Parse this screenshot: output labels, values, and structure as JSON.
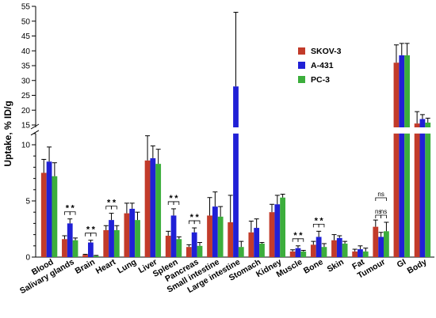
{
  "chart_data": {
    "type": "bar",
    "ylabel": "Uptake, % ID/g",
    "categories": [
      "Blood",
      "Salivary glands",
      "Brain",
      "Heart",
      "Lung",
      "Liver",
      "Spleen",
      "Pancreas",
      "Small intestine",
      "Large intestine",
      "Stomach",
      "Kidney",
      "Muscle",
      "Bone",
      "Skin",
      "Fat",
      "Tumour",
      "GI",
      "Body"
    ],
    "series": [
      {
        "name": "SKOV-3",
        "color": "#c23b2a",
        "values": [
          7.5,
          1.6,
          0.2,
          2.4,
          3.9,
          8.6,
          1.9,
          0.9,
          3.7,
          3.1,
          2.2,
          4.0,
          0.5,
          1.1,
          1.5,
          0.5,
          2.7,
          36,
          15.5
        ],
        "errors": [
          1.2,
          0.3,
          0.05,
          0.4,
          0.9,
          2.2,
          0.4,
          0.2,
          1.6,
          2.4,
          1.0,
          0.7,
          0.15,
          0.3,
          0.5,
          0.2,
          0.6,
          6,
          4
        ]
      },
      {
        "name": "A-431",
        "color": "#2020d6",
        "values": [
          8.5,
          3.0,
          1.3,
          3.3,
          4.3,
          8.8,
          3.7,
          2.2,
          4.5,
          28,
          2.6,
          4.7,
          0.8,
          1.8,
          1.7,
          0.7,
          1.8,
          38.5,
          17
        ],
        "errors": [
          1.3,
          0.4,
          0.2,
          0.6,
          0.5,
          1.1,
          0.6,
          0.4,
          1.3,
          25,
          0.8,
          0.8,
          0.2,
          0.5,
          0.2,
          0.3,
          0.4,
          4,
          1.5
        ]
      },
      {
        "name": "PC-3",
        "color": "#3cae3c",
        "values": [
          7.2,
          1.5,
          0.1,
          2.4,
          3.3,
          8.3,
          1.6,
          1.0,
          3.6,
          0.9,
          1.2,
          5.3,
          0.5,
          0.9,
          1.2,
          0.5,
          2.3,
          38.5,
          15.8
        ],
        "errors": [
          1.2,
          0.2,
          0.05,
          0.4,
          0.7,
          1.3,
          0.2,
          0.3,
          0.9,
          0.5,
          0.1,
          0.3,
          0.1,
          0.3,
          0.2,
          0.3,
          0.8,
          4,
          1.5
        ]
      }
    ],
    "annotations": [
      {
        "category": "Salivary glands",
        "labels": [
          "*",
          "*"
        ]
      },
      {
        "category": "Brain",
        "labels": [
          "*",
          "*"
        ]
      },
      {
        "category": "Heart",
        "labels": [
          "*",
          "*"
        ]
      },
      {
        "category": "Spleen",
        "labels": [
          "*",
          "*"
        ]
      },
      {
        "category": "Pancreas",
        "labels": [
          "*",
          "*"
        ]
      },
      {
        "category": "Muscle",
        "labels": [
          "*",
          "*"
        ]
      },
      {
        "category": "Bone",
        "labels": [
          "*",
          "*"
        ]
      },
      {
        "category": "Tumour",
        "labels": [
          "ns",
          "ns",
          "ns"
        ]
      }
    ],
    "y_lower": {
      "range": [
        0,
        11
      ],
      "ticks": [
        "0",
        "5",
        "10"
      ]
    },
    "y_upper": {
      "range": [
        15,
        55
      ],
      "ticks": [
        "15",
        "20",
        "25",
        "30",
        "35",
        "40",
        "45",
        "50",
        "55"
      ]
    },
    "axis_break": true,
    "legend_position": "top-right"
  }
}
